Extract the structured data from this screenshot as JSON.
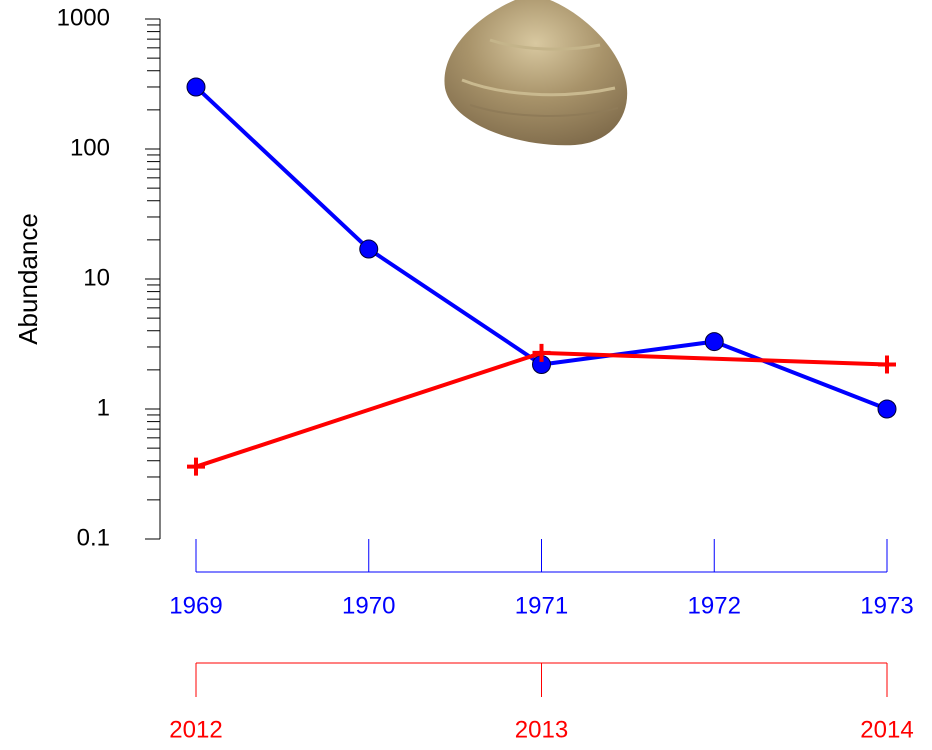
{
  "chart_data": {
    "type": "line",
    "ylabel": "Abundance",
    "ylim": [
      0.1,
      1000
    ],
    "yticks": [
      0.1,
      1,
      10,
      100,
      1000
    ],
    "log": true,
    "xlim": [
      1969,
      1973
    ],
    "xticks": [
      1969,
      1970,
      1971,
      1972,
      1973
    ],
    "xaxis_color": "#0000ff",
    "x2lim": [
      2012,
      2014
    ],
    "x2ticks": [
      2012,
      2013,
      2014
    ],
    "x2axis_color": "#ff0000",
    "series": [
      {
        "color": "#0000ff",
        "marker": "circle",
        "x": [
          1969,
          1970,
          1971,
          1972,
          1973
        ],
        "values": [
          300,
          17,
          2.2,
          3.3,
          1
        ]
      },
      {
        "color": "#ff0000",
        "marker": "plus",
        "axis": "x2",
        "x": [
          2012,
          2013,
          2014
        ],
        "values": [
          0.36,
          2.7,
          2.2
        ]
      }
    ]
  }
}
